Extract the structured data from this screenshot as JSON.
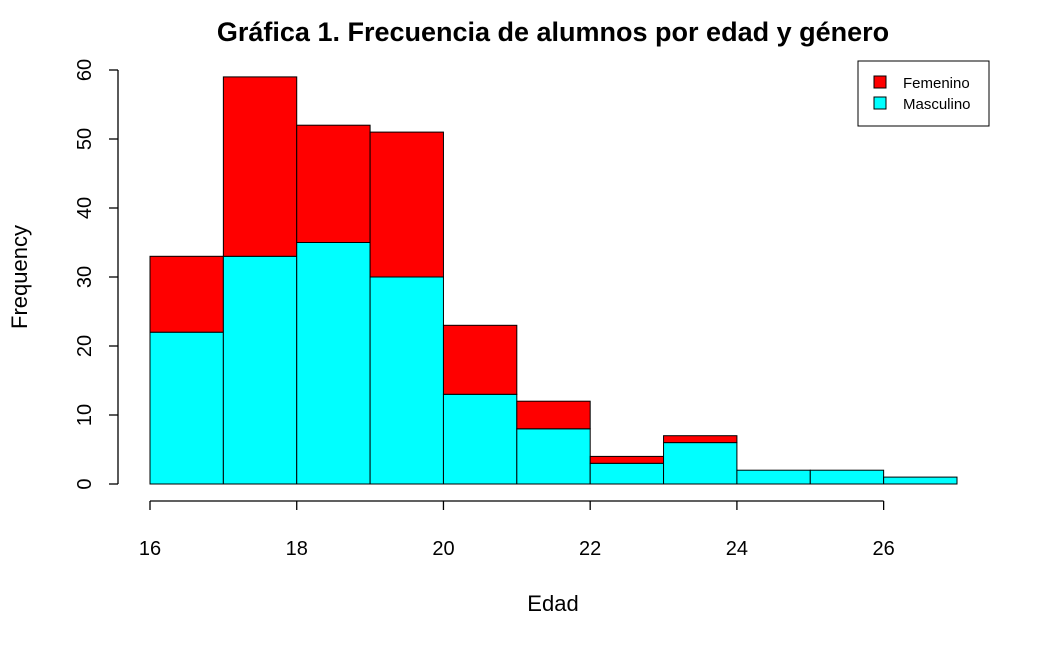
{
  "chart_data": {
    "type": "bar",
    "subtype": "stacked-histogram",
    "title": "Gráfica 1. Frecuencia de alumnos por edad y género",
    "xlabel": "Edad",
    "ylabel": "Frequency",
    "bin_edges": [
      16,
      17,
      18,
      19,
      20,
      21,
      22,
      23,
      24,
      25,
      26,
      27
    ],
    "xlim": [
      16,
      27
    ],
    "ylim": [
      0,
      60
    ],
    "x_ticks": [
      16,
      18,
      20,
      22,
      24,
      26
    ],
    "y_ticks": [
      0,
      10,
      20,
      30,
      40,
      50,
      60
    ],
    "grid": false,
    "legend_position": "top-right",
    "series": [
      {
        "name": "Masculino",
        "color": "#00FFFF",
        "values": [
          22,
          33,
          35,
          30,
          13,
          8,
          3,
          6,
          2,
          2,
          1
        ]
      },
      {
        "name": "Femenino",
        "color": "#FF0000",
        "values": [
          11,
          26,
          17,
          21,
          10,
          4,
          1,
          1,
          0,
          0,
          0
        ]
      }
    ],
    "legend": [
      {
        "name": "Femenino",
        "color": "#FF0000"
      },
      {
        "name": "Masculino",
        "color": "#00FFFF"
      }
    ]
  }
}
